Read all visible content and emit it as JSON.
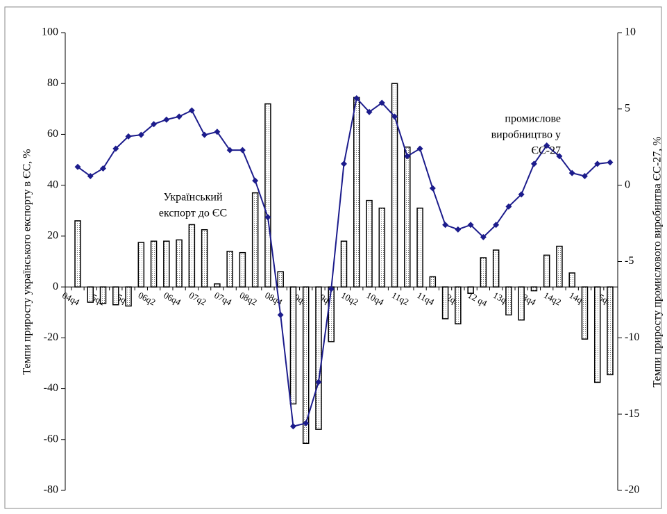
{
  "chart_data": {
    "type": "combo",
    "y_label": "Темпи приросту українського експорту в ЄС, %",
    "y2_label": "Темпи приросту промислового виробнитва ЄС-27, %",
    "annotations": [
      [
        "Український",
        "експорт до ЄС"
      ],
      [
        "промислове",
        "виробництво у",
        "ЄС-27"
      ]
    ],
    "categories": [
      "04q4",
      null,
      "05q2",
      null,
      "05q4",
      null,
      "06q2",
      null,
      "06q4",
      null,
      "07q2",
      null,
      "07q4",
      null,
      "08q2",
      null,
      "08q4",
      null,
      "09q2",
      null,
      "09q4",
      null,
      "10q2",
      null,
      "10q4",
      null,
      "11q2",
      null,
      "11q4",
      null,
      "12q2",
      null,
      "12 q4",
      null,
      "13q2",
      null,
      "13q4",
      null,
      "14q2",
      null,
      "14q4",
      null,
      "15q2"
    ],
    "ylim": [
      -80,
      100
    ],
    "yticks": [
      -80,
      -60,
      -40,
      -20,
      0,
      20,
      40,
      60,
      80,
      100
    ],
    "y2lim": [
      -20,
      10
    ],
    "y2ticks": [
      -20,
      -15,
      -10,
      -5,
      0,
      5,
      10
    ],
    "grid": false,
    "series": [
      {
        "type": "bar",
        "color": "#000000",
        "values": [
          26,
          -6,
          -6.5,
          -7,
          -7.5,
          17.5,
          18,
          18,
          18.5,
          24.5,
          22.5,
          1.2,
          14,
          13.5,
          37,
          72,
          6,
          -46,
          -61.5,
          -56,
          -21.5,
          18,
          74.5,
          34,
          31,
          80,
          55,
          31,
          4,
          -12.5,
          -14.5,
          -2.5,
          11.5,
          14.5,
          -11,
          -13,
          -1.5,
          12.5,
          16,
          5.5,
          -20.5,
          -37.5,
          -34.5
        ]
      },
      {
        "type": "line",
        "axis": "y2",
        "color": "#1c1c8c",
        "values": [
          1.2,
          0.6,
          1.1,
          2.4,
          3.2,
          3.3,
          4.0,
          4.3,
          4.5,
          4.9,
          3.3,
          3.5,
          2.3,
          2.3,
          0.3,
          -2.1,
          -8.5,
          -15.8,
          -15.6,
          -12.9,
          -6.8,
          1.4,
          5.7,
          4.8,
          5.4,
          4.5,
          1.9,
          2.4,
          -0.2,
          -2.6,
          -2.9,
          -2.6,
          -3.4,
          -2.6,
          -1.4,
          -0.6,
          1.4,
          2.6,
          1.9,
          0.8,
          0.6,
          1.4,
          1.5
        ]
      }
    ]
  }
}
